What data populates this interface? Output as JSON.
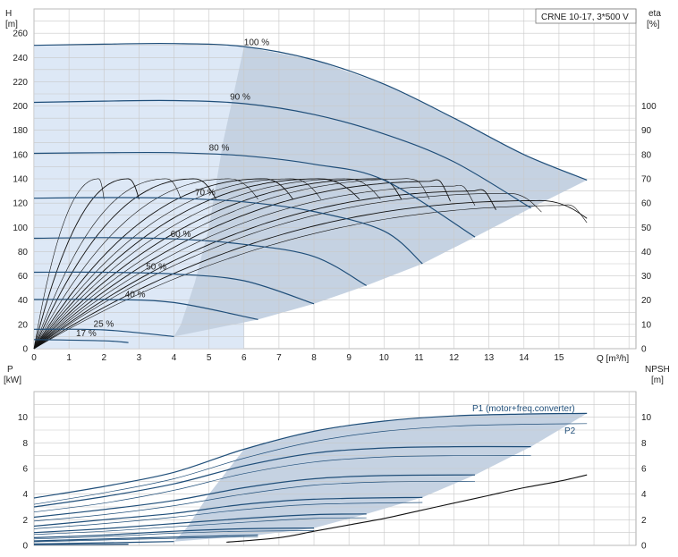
{
  "chart_data": [
    {
      "type": "line",
      "title": "CRNE 10-17, 3*500 V",
      "xlabel": "Q [m³/h]",
      "ylabel_left": "H",
      "ylabel_left_unit": "[m]",
      "ylabel_right": "eta",
      "ylabel_right_unit": "[%]",
      "xlim": [
        0,
        17.2
      ],
      "ylim": [
        0,
        280
      ],
      "eta_lim": [
        0,
        140
      ],
      "x_ticks": [
        0,
        1,
        2,
        3,
        4,
        5,
        6,
        7,
        8,
        9,
        10,
        11,
        12,
        13,
        14,
        15
      ],
      "y_ticks": [
        0,
        20,
        40,
        60,
        80,
        100,
        120,
        140,
        160,
        180,
        200,
        220,
        240,
        260
      ],
      "eta_ticks": [
        0,
        10,
        20,
        30,
        40,
        50,
        60,
        70,
        80,
        90,
        100
      ],
      "grid": true,
      "operating_region_color": "#c5d2e2",
      "light_region_color": "#dde8f6",
      "curve_color": "#1f4e79",
      "head_curves": [
        {
          "label": "100 %",
          "label_q": 6.0,
          "label_h": 248,
          "points": [
            [
              0,
              250
            ],
            [
              2,
              251
            ],
            [
              4,
              251.5
            ],
            [
              6,
              249
            ],
            [
              8,
              238
            ],
            [
              10,
              218
            ],
            [
              12,
              190
            ],
            [
              14,
              160
            ],
            [
              15.8,
              139
            ]
          ]
        },
        {
          "label": "90 %",
          "label_q": 5.6,
          "label_h": 203,
          "points": [
            [
              0,
              203
            ],
            [
              2,
              204
            ],
            [
              4,
              204.5
            ],
            [
              6,
              202
            ],
            [
              8,
              193
            ],
            [
              10,
              177
            ],
            [
              12,
              154
            ],
            [
              14.2,
              116
            ]
          ]
        },
        {
          "label": "80 %",
          "label_q": 5.0,
          "label_h": 161,
          "points": [
            [
              0,
              161
            ],
            [
              2,
              161.5
            ],
            [
              4,
              161.5
            ],
            [
              6,
              159
            ],
            [
              8,
              152
            ],
            [
              10,
              139
            ],
            [
              12.6,
              92
            ]
          ]
        },
        {
          "label": "70 %",
          "label_q": 4.6,
          "label_h": 124,
          "points": [
            [
              0,
              124
            ],
            [
              2,
              124.5
            ],
            [
              4,
              124
            ],
            [
              6,
              121
            ],
            [
              8,
              113
            ],
            [
              10,
              97
            ],
            [
              11.1,
              70
            ]
          ]
        },
        {
          "label": "60 %",
          "label_q": 3.9,
          "label_h": 90,
          "points": [
            [
              0,
              91
            ],
            [
              2,
              91.5
            ],
            [
              4,
              90.5
            ],
            [
              6,
              86
            ],
            [
              8,
              76
            ],
            [
              9.5,
              52
            ]
          ]
        },
        {
          "label": "50 %",
          "label_q": 3.2,
          "label_h": 63,
          "points": [
            [
              0,
              63
            ],
            [
              2,
              63
            ],
            [
              4,
              61.5
            ],
            [
              6,
              56
            ],
            [
              8,
              37
            ]
          ]
        },
        {
          "label": "40 %",
          "label_q": 2.6,
          "label_h": 40,
          "points": [
            [
              0,
              40.5
            ],
            [
              2,
              40.5
            ],
            [
              4,
              38
            ],
            [
              6.4,
              24
            ]
          ]
        },
        {
          "label": "25 %",
          "label_q": 1.7,
          "label_h": 16,
          "points": [
            [
              0,
              16
            ],
            [
              2,
              15.5
            ],
            [
              4,
              10
            ]
          ]
        },
        {
          "label": "17 %",
          "label_q": 1.2,
          "label_h": 8,
          "points": [
            [
              0,
              7.5
            ],
            [
              2,
              6.5
            ],
            [
              2.7,
              5
            ]
          ]
        }
      ],
      "efficiency_curves": {
        "eta_max": [
          70,
          70,
          70,
          70,
          70,
          70,
          70,
          70,
          70,
          70,
          70,
          69,
          67,
          65,
          64,
          61,
          59
        ],
        "q_end": [
          2.0,
          3.0,
          4.2,
          5.2,
          6.4,
          7.4,
          8.2,
          9.3,
          9.9,
          10.5,
          11.3,
          11.9,
          12.6,
          13.2,
          14.5,
          15.8,
          15.8
        ],
        "q_peak": [
          1.85,
          2.7,
          3.8,
          4.6,
          5.6,
          6.6,
          7.4,
          8.2,
          9.0,
          9.9,
          10.8,
          11.6,
          12.2,
          12.9,
          13.6,
          14.5,
          15.3
        ]
      },
      "annotations": [
        "100 %",
        "90 %",
        "80 %",
        "70 %",
        "60 %",
        "50 %",
        "40 %",
        "25 %",
        "17 %"
      ]
    },
    {
      "type": "line",
      "xlabel": "",
      "ylabel_left": "P",
      "ylabel_left_unit": "[kW]",
      "ylabel_right": "NPSH",
      "ylabel_right_unit": "[m]",
      "xlim": [
        0,
        17.2
      ],
      "ylim": [
        0,
        12
      ],
      "y_ticks": [
        0,
        2,
        4,
        6,
        8,
        10
      ],
      "npsh_ticks": [
        0,
        2,
        4,
        6,
        8,
        10
      ],
      "grid": true,
      "series_labels": [
        "P1 (motor+freq.converter)",
        "P2"
      ],
      "p1_curves": [
        {
          "points": [
            [
              0,
              3.7
            ],
            [
              2,
              4.6
            ],
            [
              4,
              5.7
            ],
            [
              6,
              7.5
            ],
            [
              8,
              8.9
            ],
            [
              10,
              9.7
            ],
            [
              12,
              10.1
            ],
            [
              14,
              10.25
            ],
            [
              15.8,
              10.3
            ]
          ]
        },
        {
          "points": [
            [
              0,
              3.0
            ],
            [
              2,
              3.8
            ],
            [
              4,
              4.8
            ],
            [
              6,
              6.2
            ],
            [
              8,
              7.2
            ],
            [
              10,
              7.6
            ],
            [
              12,
              7.7
            ],
            [
              14.2,
              7.7
            ]
          ]
        },
        {
          "points": [
            [
              0,
              2.2
            ],
            [
              2,
              2.8
            ],
            [
              4,
              3.5
            ],
            [
              6,
              4.5
            ],
            [
              8,
              5.2
            ],
            [
              10,
              5.45
            ],
            [
              12.6,
              5.5
            ]
          ]
        },
        {
          "points": [
            [
              0,
              1.5
            ],
            [
              2,
              2.0
            ],
            [
              4,
              2.5
            ],
            [
              6,
              3.2
            ],
            [
              8,
              3.6
            ],
            [
              11.1,
              3.75
            ]
          ]
        },
        {
          "points": [
            [
              0,
              1.0
            ],
            [
              2,
              1.3
            ],
            [
              4,
              1.7
            ],
            [
              6,
              2.1
            ],
            [
              8,
              2.4
            ],
            [
              9.5,
              2.45
            ]
          ]
        },
        {
          "points": [
            [
              0,
              0.6
            ],
            [
              2,
              0.8
            ],
            [
              4,
              1.1
            ],
            [
              6,
              1.3
            ],
            [
              8,
              1.35
            ]
          ]
        },
        {
          "points": [
            [
              0,
              0.35
            ],
            [
              2,
              0.5
            ],
            [
              4,
              0.65
            ],
            [
              6.4,
              0.8
            ]
          ]
        },
        {
          "points": [
            [
              0,
              0.12
            ],
            [
              2,
              0.2
            ],
            [
              4,
              0.3
            ]
          ]
        },
        {
          "points": [
            [
              0,
              0.05
            ],
            [
              2,
              0.08
            ],
            [
              2.7,
              0.1
            ]
          ]
        }
      ],
      "p2_curves": [
        {
          "points": [
            [
              0,
              3.2
            ],
            [
              2,
              4.1
            ],
            [
              4,
              5.2
            ],
            [
              6,
              6.8
            ],
            [
              8,
              8.1
            ],
            [
              10,
              8.9
            ],
            [
              12,
              9.3
            ],
            [
              14,
              9.45
            ],
            [
              15.8,
              9.5
            ]
          ]
        },
        {
          "points": [
            [
              0,
              2.6
            ],
            [
              2,
              3.3
            ],
            [
              4,
              4.3
            ],
            [
              6,
              5.6
            ],
            [
              8,
              6.5
            ],
            [
              10,
              6.9
            ],
            [
              12,
              7.0
            ],
            [
              14.2,
              7.0
            ]
          ]
        },
        {
          "points": [
            [
              0,
              1.9
            ],
            [
              2,
              2.4
            ],
            [
              4,
              3.1
            ],
            [
              6,
              4.0
            ],
            [
              8,
              4.7
            ],
            [
              10,
              4.95
            ],
            [
              12.6,
              5.0
            ]
          ]
        },
        {
          "points": [
            [
              0,
              1.3
            ],
            [
              2,
              1.7
            ],
            [
              4,
              2.2
            ],
            [
              6,
              2.8
            ],
            [
              8,
              3.2
            ],
            [
              11.1,
              3.35
            ]
          ]
        },
        {
          "points": [
            [
              0,
              0.85
            ],
            [
              2,
              1.1
            ],
            [
              4,
              1.45
            ],
            [
              6,
              1.8
            ],
            [
              8,
              2.1
            ],
            [
              9.5,
              2.15
            ]
          ]
        },
        {
          "points": [
            [
              0,
              0.5
            ],
            [
              2,
              0.68
            ],
            [
              4,
              0.95
            ],
            [
              6,
              1.1
            ],
            [
              8,
              1.15
            ]
          ]
        },
        {
          "points": [
            [
              0,
              0.28
            ],
            [
              2,
              0.42
            ],
            [
              4,
              0.55
            ],
            [
              6.4,
              0.68
            ]
          ]
        }
      ],
      "npsh_curve": {
        "points": [
          [
            5.5,
            0.25
          ],
          [
            7,
            0.6
          ],
          [
            8,
            1.1
          ],
          [
            9,
            1.6
          ],
          [
            10,
            2.1
          ],
          [
            11,
            2.7
          ],
          [
            12,
            3.3
          ],
          [
            13,
            3.9
          ],
          [
            14,
            4.5
          ],
          [
            15,
            5.0
          ],
          [
            15.8,
            5.5
          ]
        ]
      }
    }
  ]
}
